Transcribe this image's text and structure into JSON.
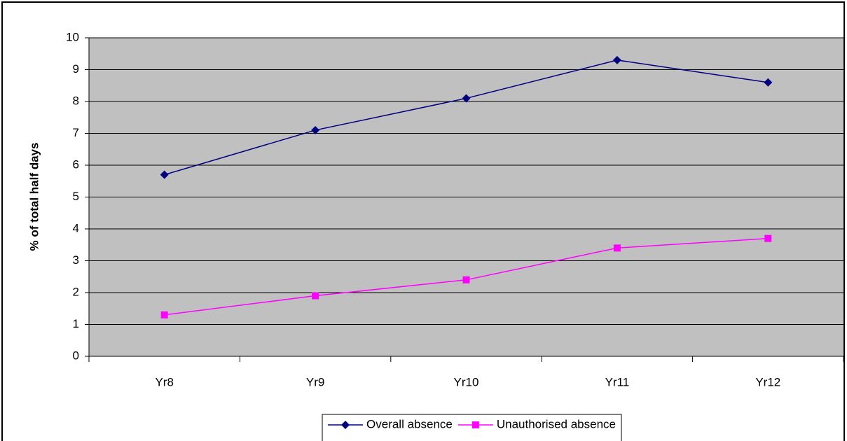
{
  "chart_data": {
    "type": "line",
    "y_label": "% of total half days",
    "categories": [
      "Yr8",
      "Yr9",
      "Yr10",
      "Yr11",
      "Yr12"
    ],
    "series": [
      {
        "name": "Overall absence",
        "color": "#000080",
        "marker": "diamond",
        "values": [
          5.7,
          7.1,
          8.1,
          9.3,
          8.6
        ]
      },
      {
        "name": "Unauthorised absence",
        "color": "#ff00ff",
        "marker": "square",
        "values": [
          1.3,
          1.9,
          2.4,
          3.4,
          3.7
        ]
      }
    ],
    "ylim": [
      0,
      10
    ],
    "yticks": [
      0,
      1,
      2,
      3,
      4,
      5,
      6,
      7,
      8,
      9,
      10
    ],
    "grid": true,
    "plot_background": "#c0c0c0",
    "legend": "bottom"
  }
}
